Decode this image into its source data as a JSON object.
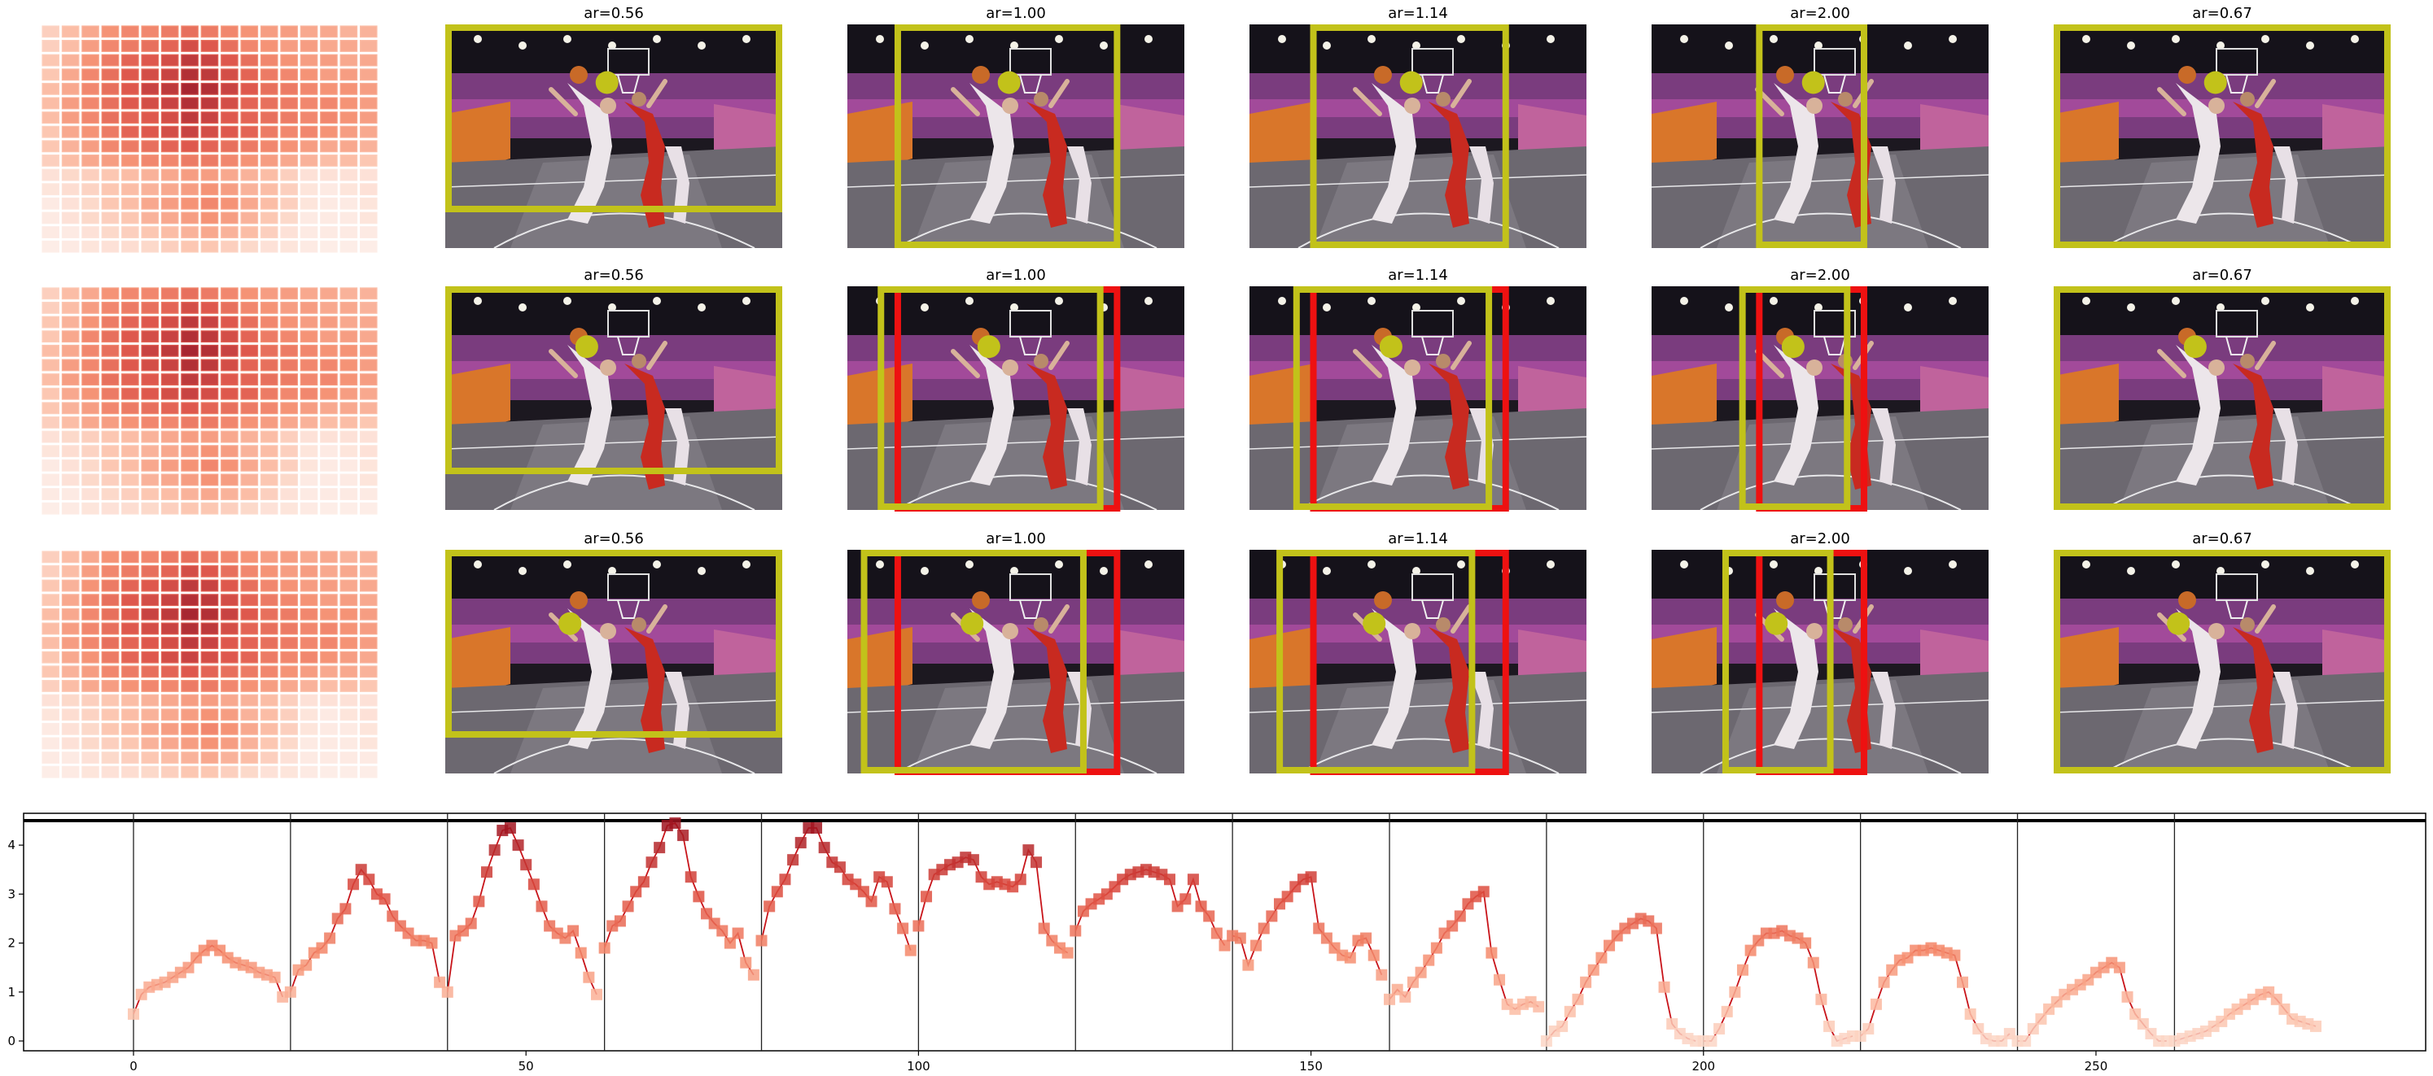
{
  "colors": {
    "marker_box": "#c2c21a",
    "ref_box": "#ee1111",
    "heat_low": "#fbe4dc",
    "heat_high": "#a81422",
    "line": "#c8141a",
    "axis": "#000000"
  },
  "panel_rows": [
    {
      "titles": [
        "ar=0.56",
        "ar=1.00",
        "ar=1.14",
        "ar=2.00",
        "ar=0.67"
      ]
    },
    {
      "titles": [
        "ar=0.56",
        "ar=1.00",
        "ar=1.14",
        "ar=2.00",
        "ar=0.67"
      ]
    },
    {
      "titles": [
        "ar=0.56",
        "ar=1.00",
        "ar=1.14",
        "ar=2.00",
        "ar=0.67"
      ]
    }
  ],
  "heatmap": {
    "rows": 16,
    "cols": 17,
    "values": [
      [
        0.2,
        0.3,
        0.4,
        0.5,
        0.55,
        0.55,
        0.6,
        0.65,
        0.6,
        0.55,
        0.5,
        0.45,
        0.45,
        0.4,
        0.4,
        0.35,
        0.35
      ],
      [
        0.2,
        0.3,
        0.45,
        0.55,
        0.6,
        0.65,
        0.7,
        0.8,
        0.75,
        0.65,
        0.55,
        0.5,
        0.45,
        0.45,
        0.4,
        0.4,
        0.35
      ],
      [
        0.25,
        0.35,
        0.5,
        0.6,
        0.7,
        0.75,
        0.8,
        0.9,
        0.85,
        0.75,
        0.65,
        0.55,
        0.5,
        0.45,
        0.45,
        0.4,
        0.4
      ],
      [
        0.25,
        0.4,
        0.55,
        0.65,
        0.75,
        0.8,
        0.85,
        0.95,
        0.9,
        0.8,
        0.7,
        0.6,
        0.55,
        0.5,
        0.45,
        0.45,
        0.4
      ],
      [
        0.3,
        0.4,
        0.55,
        0.65,
        0.75,
        0.85,
        0.9,
        1.0,
        0.95,
        0.85,
        0.75,
        0.65,
        0.6,
        0.55,
        0.5,
        0.5,
        0.45
      ],
      [
        0.3,
        0.45,
        0.55,
        0.65,
        0.75,
        0.8,
        0.85,
        0.95,
        0.9,
        0.8,
        0.7,
        0.65,
        0.6,
        0.55,
        0.55,
        0.5,
        0.45
      ],
      [
        0.3,
        0.45,
        0.55,
        0.65,
        0.7,
        0.75,
        0.8,
        0.9,
        0.85,
        0.75,
        0.7,
        0.65,
        0.6,
        0.55,
        0.55,
        0.5,
        0.45
      ],
      [
        0.25,
        0.4,
        0.5,
        0.6,
        0.7,
        0.75,
        0.8,
        0.85,
        0.8,
        0.75,
        0.7,
        0.6,
        0.55,
        0.55,
        0.5,
        0.45,
        0.4
      ],
      [
        0.25,
        0.35,
        0.45,
        0.55,
        0.6,
        0.65,
        0.7,
        0.75,
        0.7,
        0.65,
        0.6,
        0.55,
        0.5,
        0.45,
        0.4,
        0.4,
        0.35
      ],
      [
        0.2,
        0.3,
        0.4,
        0.45,
        0.5,
        0.55,
        0.55,
        0.6,
        0.6,
        0.55,
        0.5,
        0.45,
        0.4,
        0.35,
        0.3,
        0.3,
        0.25
      ],
      [
        0.1,
        0.15,
        0.2,
        0.25,
        0.3,
        0.35,
        0.4,
        0.45,
        0.45,
        0.4,
        0.35,
        0.3,
        0.2,
        0.1,
        0.1,
        0.1,
        0.1
      ],
      [
        0.08,
        0.12,
        0.18,
        0.25,
        0.3,
        0.35,
        0.4,
        0.45,
        0.5,
        0.45,
        0.35,
        0.3,
        0.2,
        0.08,
        0.05,
        0.08,
        0.1
      ],
      [
        0.05,
        0.1,
        0.15,
        0.25,
        0.3,
        0.4,
        0.45,
        0.5,
        0.55,
        0.5,
        0.4,
        0.3,
        0.2,
        0.08,
        0.05,
        0.05,
        0.08
      ],
      [
        0.05,
        0.1,
        0.15,
        0.2,
        0.25,
        0.35,
        0.4,
        0.45,
        0.5,
        0.45,
        0.35,
        0.25,
        0.15,
        0.05,
        0.05,
        0.05,
        0.08
      ],
      [
        0.05,
        0.05,
        0.1,
        0.15,
        0.2,
        0.25,
        0.3,
        0.35,
        0.4,
        0.35,
        0.3,
        0.2,
        0.1,
        0.05,
        0.05,
        0.05,
        0.05
      ],
      [
        0.03,
        0.05,
        0.08,
        0.1,
        0.12,
        0.15,
        0.2,
        0.25,
        0.25,
        0.2,
        0.15,
        0.1,
        0.08,
        0.05,
        0.03,
        0.03,
        0.03
      ]
    ]
  },
  "markers": [
    [
      {
        "dot": [
          0.48,
          0.26
        ],
        "box": [
          0.0,
          0.0,
          1.0,
          0.84
        ],
        "ref": null
      },
      {
        "dot": [
          0.48,
          0.26
        ],
        "box": [
          0.14,
          0.0,
          0.81,
          1.0
        ],
        "ref": null
      },
      {
        "dot": [
          0.48,
          0.26
        ],
        "box": [
          0.18,
          0.0,
          0.77,
          1.0
        ],
        "ref": null
      },
      {
        "dot": [
          0.48,
          0.26
        ],
        "box": [
          0.31,
          0.0,
          0.64,
          1.0
        ],
        "ref": null
      },
      {
        "dot": [
          0.48,
          0.26
        ],
        "box": [
          0.0,
          0.0,
          1.0,
          1.0
        ],
        "ref": null
      }
    ],
    [
      {
        "dot": [
          0.42,
          0.27
        ],
        "box": [
          0.0,
          0.0,
          1.0,
          0.84
        ],
        "ref": null
      },
      {
        "dot": [
          0.42,
          0.27
        ],
        "box": [
          0.09,
          0.0,
          0.76,
          1.0
        ],
        "ref": [
          0.14,
          0.0,
          0.81,
          1.0
        ]
      },
      {
        "dot": [
          0.42,
          0.27
        ],
        "box": [
          0.13,
          0.0,
          0.72,
          1.0
        ],
        "ref": [
          0.18,
          0.0,
          0.77,
          1.0
        ]
      },
      {
        "dot": [
          0.42,
          0.27
        ],
        "box": [
          0.26,
          0.0,
          0.59,
          1.0
        ],
        "ref": [
          0.31,
          0.0,
          0.64,
          1.0
        ]
      },
      {
        "dot": [
          0.42,
          0.27
        ],
        "box": [
          0.0,
          0.0,
          1.0,
          1.0
        ],
        "ref": null
      }
    ],
    [
      {
        "dot": [
          0.37,
          0.33
        ],
        "box": [
          0.0,
          0.0,
          1.0,
          0.84
        ],
        "ref": null
      },
      {
        "dot": [
          0.37,
          0.33
        ],
        "box": [
          0.04,
          0.0,
          0.71,
          1.0
        ],
        "ref": [
          0.14,
          0.0,
          0.81,
          1.0
        ]
      },
      {
        "dot": [
          0.37,
          0.33
        ],
        "box": [
          0.08,
          0.0,
          0.67,
          1.0
        ],
        "ref": [
          0.18,
          0.0,
          0.77,
          1.0
        ]
      },
      {
        "dot": [
          0.37,
          0.33
        ],
        "box": [
          0.21,
          0.0,
          0.54,
          1.0
        ],
        "ref": [
          0.31,
          0.0,
          0.64,
          1.0
        ]
      },
      {
        "dot": [
          0.37,
          0.33
        ],
        "box": [
          0.0,
          0.0,
          1.0,
          1.0
        ],
        "ref": null
      }
    ]
  ],
  "chart_data": {
    "type": "line",
    "title": "",
    "xlabel": "",
    "ylabel": "",
    "xlim": [
      -14,
      292
    ],
    "ylim": [
      -0.2,
      4.65
    ],
    "xticks": [
      0,
      50,
      100,
      150,
      200,
      250
    ],
    "yticks": [
      0,
      1,
      2,
      3,
      4
    ],
    "vlines": [
      0,
      20,
      40,
      60,
      80,
      100,
      120,
      140,
      160,
      180,
      200,
      220,
      240,
      260
    ],
    "hline": 4.5,
    "grid": false,
    "segments": [
      {
        "x0": 0,
        "y": [
          0.55,
          0.95,
          1.1,
          1.15,
          1.2,
          1.3,
          1.4,
          1.5,
          1.7,
          1.85,
          1.95,
          1.85,
          1.7,
          1.6,
          1.55,
          1.5,
          1.4,
          1.35,
          1.3,
          0.9
        ]
      },
      {
        "x0": 20,
        "y": [
          1.0,
          1.45,
          1.55,
          1.8,
          1.9,
          2.1,
          2.5,
          2.7,
          3.2,
          3.5,
          3.3,
          3.0,
          2.9,
          2.55,
          2.35,
          2.2,
          2.05,
          2.05,
          2.0,
          1.2
        ]
      },
      {
        "x0": 40,
        "y": [
          1.0,
          2.15,
          2.25,
          2.4,
          2.85,
          3.45,
          3.9,
          4.3,
          4.35,
          4.0,
          3.6,
          3.2,
          2.75,
          2.35,
          2.2,
          2.1,
          2.25,
          1.8,
          1.3,
          0.95
        ]
      },
      {
        "x0": 60,
        "y": [
          1.9,
          2.35,
          2.45,
          2.75,
          3.05,
          3.25,
          3.65,
          3.95,
          4.4,
          4.45,
          4.2,
          3.35,
          2.95,
          2.6,
          2.4,
          2.25,
          2.0,
          2.2,
          1.6,
          1.35
        ]
      },
      {
        "x0": 80,
        "y": [
          2.05,
          2.75,
          3.05,
          3.3,
          3.7,
          4.05,
          4.35,
          4.35,
          3.95,
          3.65,
          3.55,
          3.3,
          3.2,
          3.05,
          2.85,
          3.35,
          3.25,
          2.7,
          2.3,
          1.85
        ]
      },
      {
        "x0": 100,
        "y": [
          2.35,
          2.95,
          3.4,
          3.5,
          3.6,
          3.65,
          3.75,
          3.7,
          3.35,
          3.2,
          3.25,
          3.2,
          3.15,
          3.3,
          3.9,
          3.65,
          2.3,
          2.05,
          1.9,
          1.8
        ]
      },
      {
        "x0": 120,
        "y": [
          2.25,
          2.65,
          2.8,
          2.9,
          3.0,
          3.15,
          3.3,
          3.4,
          3.45,
          3.5,
          3.45,
          3.4,
          3.3,
          2.75,
          2.9,
          3.3,
          2.75,
          2.55,
          2.2,
          1.95
        ]
      },
      {
        "x0": 140,
        "y": [
          2.15,
          2.1,
          1.55,
          1.95,
          2.3,
          2.55,
          2.8,
          2.95,
          3.15,
          3.3,
          3.35,
          2.3,
          2.1,
          1.9,
          1.75,
          1.7,
          2.05,
          2.1,
          1.75,
          1.35
        ]
      },
      {
        "x0": 160,
        "y": [
          0.85,
          1.05,
          0.9,
          1.2,
          1.4,
          1.65,
          1.9,
          2.2,
          2.35,
          2.55,
          2.8,
          2.95,
          3.05,
          1.8,
          1.25,
          0.75,
          0.65,
          0.75,
          0.8,
          0.7
        ]
      },
      {
        "x0": 180,
        "y": [
          0.0,
          0.2,
          0.3,
          0.6,
          0.85,
          1.2,
          1.45,
          1.7,
          1.95,
          2.15,
          2.3,
          2.4,
          2.5,
          2.45,
          2.3,
          1.1,
          0.35,
          0.15,
          0.05,
          0.0
        ]
      },
      {
        "x0": 200,
        "y": [
          0.0,
          0.0,
          0.25,
          0.6,
          1.0,
          1.45,
          1.85,
          2.05,
          2.2,
          2.2,
          2.25,
          2.15,
          2.1,
          2.0,
          1.6,
          0.85,
          0.3,
          0.0,
          0.05,
          0.1
        ]
      },
      {
        "x0": 220,
        "y": [
          0.1,
          0.25,
          0.75,
          1.2,
          1.45,
          1.65,
          1.7,
          1.85,
          1.85,
          1.9,
          1.85,
          1.8,
          1.75,
          1.2,
          0.55,
          0.25,
          0.05,
          0.0,
          0.0,
          0.15
        ]
      },
      {
        "x0": 240,
        "y": [
          0.0,
          0.0,
          0.25,
          0.45,
          0.65,
          0.8,
          0.95,
          1.05,
          1.15,
          1.25,
          1.4,
          1.5,
          1.6,
          1.5,
          0.9,
          0.55,
          0.35,
          0.15,
          0.0,
          0.0
        ]
      },
      {
        "x0": 260,
        "y": [
          0.0,
          0.05,
          0.1,
          0.15,
          0.2,
          0.3,
          0.4,
          0.55,
          0.65,
          0.75,
          0.85,
          0.95,
          1.0,
          0.85,
          0.65,
          0.45,
          0.4,
          0.35,
          0.3
        ]
      }
    ]
  }
}
